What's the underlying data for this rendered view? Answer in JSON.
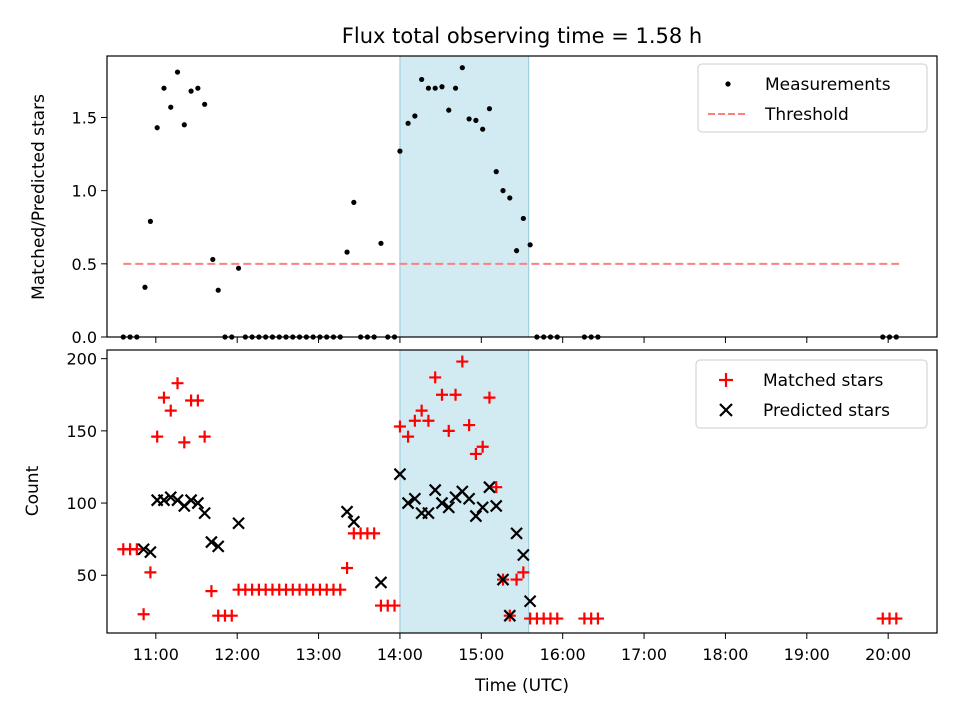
{
  "chart_data": [
    {
      "type": "scatter",
      "title": "Flux total observing time = 1.58 h",
      "xlabel": "",
      "ylabel": "Matched/Predicted stars",
      "xlim": [
        "10:24",
        "20:36"
      ],
      "ylim": [
        0,
        1.92
      ],
      "yticks": [
        "0.0",
        "0.5",
        "1.0",
        "1.5"
      ],
      "grid": false,
      "legend_position": "top-right",
      "highlight_span": {
        "start": "14:00",
        "end": "15:35",
        "color": "#add8e6"
      },
      "series": [
        {
          "name": "Measurements",
          "marker": "dot",
          "color": "#000000",
          "points": [
            [
              "10:36",
              0.0
            ],
            [
              "10:41",
              0.0
            ],
            [
              "10:46",
              0.0
            ],
            [
              "10:52",
              0.34
            ],
            [
              "10:56",
              0.79
            ],
            [
              "11:01",
              1.43
            ],
            [
              "11:06",
              1.7
            ],
            [
              "11:11",
              1.57
            ],
            [
              "11:16",
              1.81
            ],
            [
              "11:21",
              1.45
            ],
            [
              "11:26",
              1.68
            ],
            [
              "11:31",
              1.7
            ],
            [
              "11:36",
              1.59
            ],
            [
              "11:42",
              0.53
            ],
            [
              "11:46",
              0.32
            ],
            [
              "11:51",
              0.0
            ],
            [
              "11:56",
              0.0
            ],
            [
              "12:01",
              0.47
            ],
            [
              "12:06",
              0.0
            ],
            [
              "12:11",
              0.0
            ],
            [
              "12:16",
              0.0
            ],
            [
              "12:21",
              0.0
            ],
            [
              "12:26",
              0.0
            ],
            [
              "12:31",
              0.0
            ],
            [
              "12:36",
              0.0
            ],
            [
              "12:41",
              0.0
            ],
            [
              "12:46",
              0.0
            ],
            [
              "12:51",
              0.0
            ],
            [
              "12:56",
              0.0
            ],
            [
              "13:01",
              0.0
            ],
            [
              "13:06",
              0.0
            ],
            [
              "13:11",
              0.0
            ],
            [
              "13:16",
              0.0
            ],
            [
              "13:21",
              0.58
            ],
            [
              "13:26",
              0.92
            ],
            [
              "13:31",
              0.0
            ],
            [
              "13:36",
              0.0
            ],
            [
              "13:41",
              0.0
            ],
            [
              "13:46",
              0.64
            ],
            [
              "13:51",
              0.0
            ],
            [
              "13:56",
              0.0
            ],
            [
              "14:00",
              1.27
            ],
            [
              "14:06",
              1.46
            ],
            [
              "14:11",
              1.51
            ],
            [
              "14:16",
              1.76
            ],
            [
              "14:21",
              1.7
            ],
            [
              "14:26",
              1.7
            ],
            [
              "14:31",
              1.71
            ],
            [
              "14:36",
              1.55
            ],
            [
              "14:41",
              1.7
            ],
            [
              "14:46",
              1.84
            ],
            [
              "14:51",
              1.49
            ],
            [
              "14:56",
              1.48
            ],
            [
              "15:01",
              1.42
            ],
            [
              "15:06",
              1.56
            ],
            [
              "15:11",
              1.13
            ],
            [
              "15:16",
              1.0
            ],
            [
              "15:21",
              0.95
            ],
            [
              "15:26",
              0.59
            ],
            [
              "15:31",
              0.81
            ],
            [
              "15:36",
              0.63
            ],
            [
              "15:41",
              0.0
            ],
            [
              "15:46",
              0.0
            ],
            [
              "15:51",
              0.0
            ],
            [
              "15:56",
              0.0
            ],
            [
              "16:16",
              0.0
            ],
            [
              "16:21",
              0.0
            ],
            [
              "16:26",
              0.0
            ],
            [
              "19:56",
              0.0
            ],
            [
              "20:01",
              0.0
            ],
            [
              "20:06",
              0.0
            ]
          ]
        },
        {
          "name": "Threshold",
          "marker": "dashed-line",
          "color": "#ff7f7f",
          "points": [
            [
              "10:36",
              0.5
            ],
            [
              "20:08",
              0.5
            ]
          ]
        }
      ]
    },
    {
      "type": "scatter",
      "title": "",
      "xlabel": "Time (UTC)",
      "ylabel": "Count",
      "xlim": [
        "10:24",
        "20:36"
      ],
      "ylim": [
        10,
        206
      ],
      "yticks": [
        "50",
        "100",
        "150",
        "200"
      ],
      "xticks": [
        "11:00",
        "12:00",
        "13:00",
        "14:00",
        "15:00",
        "16:00",
        "17:00",
        "18:00",
        "19:00",
        "20:00"
      ],
      "grid": false,
      "legend_position": "top-right",
      "highlight_span": {
        "start": "14:00",
        "end": "15:35",
        "color": "#add8e6"
      },
      "series": [
        {
          "name": "Matched stars",
          "marker": "plus",
          "color": "#ff0000",
          "points": [
            [
              "10:36",
              68
            ],
            [
              "10:41",
              68
            ],
            [
              "10:46",
              68
            ],
            [
              "10:51",
              23
            ],
            [
              "10:56",
              52
            ],
            [
              "11:01",
              146
            ],
            [
              "11:06",
              173
            ],
            [
              "11:11",
              164
            ],
            [
              "11:16",
              183
            ],
            [
              "11:21",
              142
            ],
            [
              "11:26",
              171
            ],
            [
              "11:31",
              171
            ],
            [
              "11:36",
              146
            ],
            [
              "11:41",
              39
            ],
            [
              "11:46",
              22
            ],
            [
              "11:51",
              22
            ],
            [
              "11:56",
              22
            ],
            [
              "12:01",
              40
            ],
            [
              "12:06",
              40
            ],
            [
              "12:11",
              40
            ],
            [
              "12:16",
              40
            ],
            [
              "12:21",
              40
            ],
            [
              "12:26",
              40
            ],
            [
              "12:31",
              40
            ],
            [
              "12:36",
              40
            ],
            [
              "12:41",
              40
            ],
            [
              "12:46",
              40
            ],
            [
              "12:51",
              40
            ],
            [
              "12:56",
              40
            ],
            [
              "13:01",
              40
            ],
            [
              "13:06",
              40
            ],
            [
              "13:11",
              40
            ],
            [
              "13:16",
              40
            ],
            [
              "13:21",
              55
            ],
            [
              "13:26",
              79
            ],
            [
              "13:31",
              79
            ],
            [
              "13:36",
              79
            ],
            [
              "13:41",
              79
            ],
            [
              "13:46",
              29
            ],
            [
              "13:51",
              29
            ],
            [
              "13:56",
              29
            ],
            [
              "14:00",
              153
            ],
            [
              "14:06",
              146
            ],
            [
              "14:11",
              157
            ],
            [
              "14:16",
              164
            ],
            [
              "14:21",
              157
            ],
            [
              "14:26",
              187
            ],
            [
              "14:31",
              175
            ],
            [
              "14:36",
              150
            ],
            [
              "14:41",
              175
            ],
            [
              "14:46",
              198
            ],
            [
              "14:51",
              154
            ],
            [
              "14:56",
              134
            ],
            [
              "15:01",
              139
            ],
            [
              "15:06",
              173
            ],
            [
              "15:11",
              111
            ],
            [
              "15:16",
              47
            ],
            [
              "15:21",
              22
            ],
            [
              "15:26",
              47
            ],
            [
              "15:31",
              52
            ],
            [
              "15:36",
              20
            ],
            [
              "15:41",
              20
            ],
            [
              "15:46",
              20
            ],
            [
              "15:51",
              20
            ],
            [
              "15:56",
              20
            ],
            [
              "16:16",
              20
            ],
            [
              "16:21",
              20
            ],
            [
              "16:26",
              20
            ],
            [
              "19:56",
              20
            ],
            [
              "20:01",
              20
            ],
            [
              "20:06",
              20
            ]
          ]
        },
        {
          "name": "Predicted stars",
          "marker": "x",
          "color": "#000000",
          "points": [
            [
              "10:51",
              68
            ],
            [
              "10:56",
              66
            ],
            [
              "11:01",
              102
            ],
            [
              "11:06",
              102
            ],
            [
              "11:11",
              104
            ],
            [
              "11:16",
              102
            ],
            [
              "11:21",
              98
            ],
            [
              "11:26",
              102
            ],
            [
              "11:31",
              100
            ],
            [
              "11:36",
              93
            ],
            [
              "11:41",
              73
            ],
            [
              "11:46",
              70
            ],
            [
              "12:01",
              86
            ],
            [
              "13:21",
              94
            ],
            [
              "13:26",
              87
            ],
            [
              "13:46",
              45
            ],
            [
              "14:00",
              120
            ],
            [
              "14:06",
              100
            ],
            [
              "14:11",
              103
            ],
            [
              "14:16",
              93
            ],
            [
              "14:21",
              93
            ],
            [
              "14:26",
              109
            ],
            [
              "14:31",
              100
            ],
            [
              "14:36",
              97
            ],
            [
              "14:41",
              104
            ],
            [
              "14:46",
              108
            ],
            [
              "14:51",
              103
            ],
            [
              "14:56",
              91
            ],
            [
              "15:01",
              97
            ],
            [
              "15:06",
              111
            ],
            [
              "15:11",
              98
            ],
            [
              "15:16",
              47
            ],
            [
              "15:21",
              22
            ],
            [
              "15:26",
              79
            ],
            [
              "15:31",
              64
            ],
            [
              "15:36",
              32
            ]
          ]
        }
      ]
    }
  ]
}
